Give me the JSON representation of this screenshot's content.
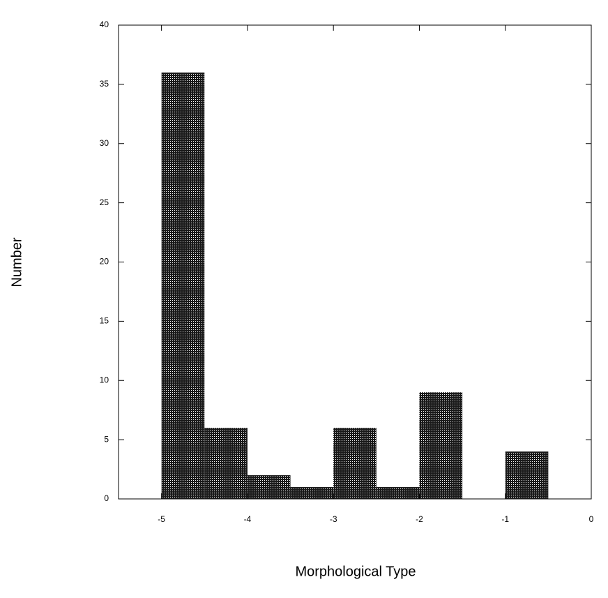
{
  "chart_data": {
    "type": "histogram",
    "x_label": "Morphological Type",
    "y_label": "Number",
    "bins": [
      -5,
      -4.5,
      -4,
      -3.5,
      -3,
      -2.5,
      -2,
      -1.5,
      -1,
      -0.5
    ],
    "values": [
      36,
      6,
      2,
      1,
      6,
      1,
      9,
      0,
      4
    ],
    "color": "#222222",
    "xlim": [
      -5.5,
      0
    ],
    "xticks": [
      -5,
      -4,
      -3,
      -2,
      -1,
      0
    ],
    "ylim": [
      0,
      40
    ],
    "yticks": [
      0,
      5,
      10,
      15,
      20,
      25,
      30,
      35,
      40
    ]
  }
}
